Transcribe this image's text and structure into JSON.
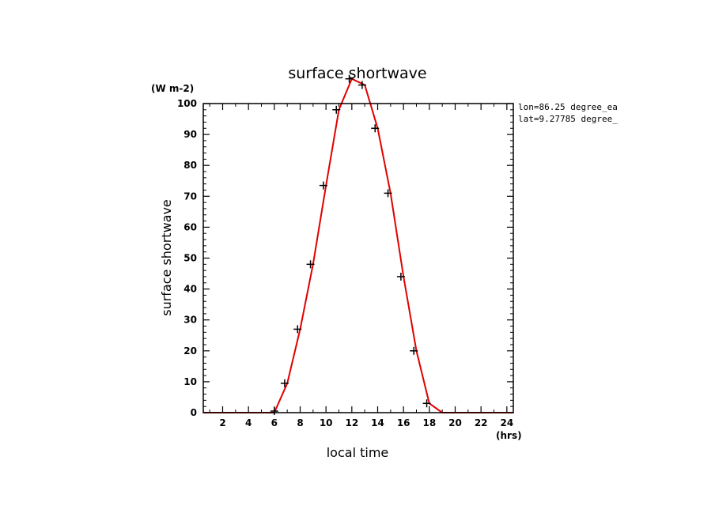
{
  "chart_data": {
    "type": "line",
    "title": "surface shortwave",
    "xlabel": "local time",
    "ylabel": "surface shortwave",
    "x_unit": "(hrs)",
    "y_unit": "(W m-2)",
    "xlim": [
      0.5,
      24.5
    ],
    "ylim": [
      0,
      100
    ],
    "x_ticks": [
      2,
      4,
      6,
      8,
      10,
      12,
      14,
      16,
      18,
      20,
      22,
      24
    ],
    "y_ticks": [
      0,
      10,
      20,
      30,
      40,
      50,
      60,
      70,
      80,
      90,
      100
    ],
    "annotations": [
      "lon=86.25 degree_ea",
      "lat=9.27785 degree_"
    ],
    "line_color": "#e00000",
    "marker_color": "#000000",
    "grid": false,
    "series": [
      {
        "x": [
          0.5,
          1,
          2,
          3,
          4,
          5,
          6,
          7,
          8,
          9,
          10,
          11,
          12,
          13,
          14,
          15,
          16,
          17,
          18,
          19,
          20,
          21,
          22,
          23,
          24,
          24.5
        ],
        "values": [
          0,
          0,
          0,
          0,
          0,
          0,
          0,
          9.5,
          27,
          48,
          73.5,
          98,
          108,
          106,
          92,
          71,
          44,
          20,
          3,
          0,
          0,
          0,
          0,
          0,
          0,
          0
        ]
      }
    ],
    "markers": {
      "x": [
        6,
        6.8,
        7.8,
        8.8,
        9.8,
        10.8,
        11.8,
        12.8,
        13.8,
        14.8,
        15.8,
        16.8,
        17.8
      ],
      "values": [
        0.5,
        9.5,
        27,
        48,
        73.5,
        98,
        108,
        106,
        92,
        71,
        44,
        20,
        3
      ]
    }
  }
}
